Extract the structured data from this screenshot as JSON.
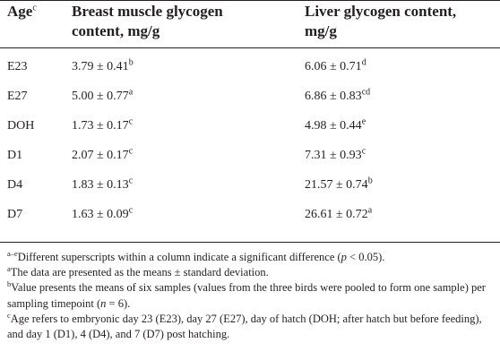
{
  "header": {
    "col0": {
      "text": "Age",
      "sup": "c"
    },
    "col1": {
      "line1": "Breast muscle glycogen",
      "line2": "content, mg/g"
    },
    "col2": {
      "line1": "Liver glycogen content,",
      "line2": "mg/g"
    }
  },
  "rows": [
    {
      "age": "E23",
      "breast": "3.79 ± 0.41",
      "breast_sup": "b",
      "liver": "6.06 ± 0.71",
      "liver_sup": "d"
    },
    {
      "age": "E27",
      "breast": "5.00 ± 0.77",
      "breast_sup": "a",
      "liver": "6.86 ± 0.83",
      "liver_sup": "cd"
    },
    {
      "age": "DOH",
      "breast": "1.73 ± 0.17",
      "breast_sup": "c",
      "liver": "4.98 ± 0.44",
      "liver_sup": "e"
    },
    {
      "age": "D1",
      "breast": "2.07 ± 0.17",
      "breast_sup": "c",
      "liver": "7.31 ± 0.93",
      "liver_sup": "c"
    },
    {
      "age": "D4",
      "breast": "1.83 ± 0.13",
      "breast_sup": "c",
      "liver": "21.57 ± 0.74",
      "liver_sup": "b"
    },
    {
      "age": "D7",
      "breast": "1.63 ± 0.09",
      "breast_sup": "c",
      "liver": "26.61 ± 0.72",
      "liver_sup": "a"
    }
  ],
  "notes": {
    "n1": {
      "sup": "a–e",
      "pre": "Different superscripts within a column indicate a significant difference (",
      "var": "p",
      "post": " < 0.05)."
    },
    "n2": {
      "sup": "a",
      "text": "The data are presented as the means ± standard deviation."
    },
    "n3": {
      "sup": "b",
      "pre": "Value presents the means of six samples (values from the three birds were pooled to form one sample) per sampling timepoint (",
      "var": "n",
      "post": " = 6)."
    },
    "n4": {
      "sup": "c",
      "text": "Age refers to embryonic day 23 (E23), day 27 (E27), day of hatch (DOH; after hatch but before feeding), and day 1 (D1), 4 (D4), and 7 (D7) post hatching."
    }
  }
}
